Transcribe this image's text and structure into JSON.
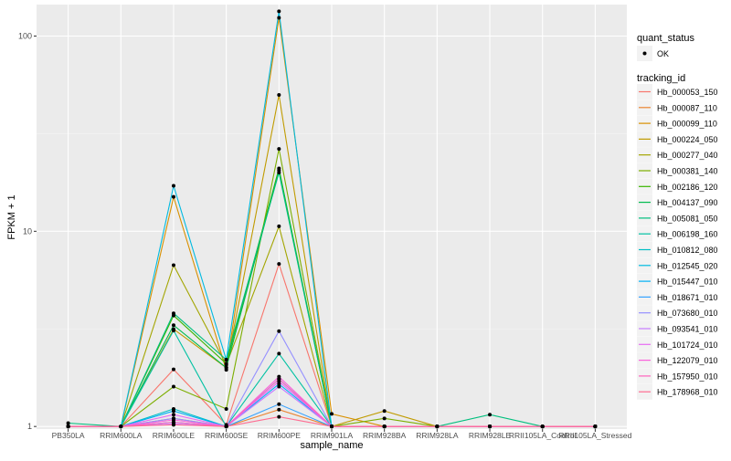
{
  "chart_data": {
    "type": "line",
    "title": "",
    "xlabel": "sample_name",
    "ylabel": "FPKM + 1",
    "yscale": "log10",
    "ylim": [
      0.97,
      145
    ],
    "yticks": [
      1,
      10,
      100
    ],
    "ytick_labels": [
      "1",
      "10",
      "100"
    ],
    "grid": true,
    "legend_placement": "right",
    "categories": [
      "PB350LA",
      "RRIM600LA",
      "RRIM600LE",
      "RRIM600SE",
      "RRIM600PE",
      "RRIM901LA",
      "RRIM928BA",
      "RRIM928LA",
      "RRIM928LE",
      "RRII105LA_Control",
      "RRII105LA_Stressed"
    ],
    "shape_legend": {
      "title": "quant_status",
      "entries": [
        "OK"
      ]
    },
    "color_legend_title": "tracking_id",
    "series": [
      {
        "name": "Hb_000053_150",
        "color": "#F8766D",
        "values": [
          1,
          1,
          1.96,
          1.02,
          6.8,
          1,
          1,
          1,
          1,
          1,
          1
        ]
      },
      {
        "name": "Hb_000087_110",
        "color": "#EA8331",
        "values": [
          1,
          1,
          1.1,
          1,
          1.22,
          1,
          1,
          1,
          1,
          1,
          1
        ]
      },
      {
        "name": "Hb_000099_110",
        "color": "#D89000",
        "values": [
          1,
          1,
          15,
          1.95,
          124,
          1.16,
          1,
          1,
          1,
          1,
          1
        ]
      },
      {
        "name": "Hb_000224_050",
        "color": "#C09B00",
        "values": [
          1,
          1,
          3.15,
          2.0,
          49.9,
          1,
          1.2,
          1,
          1,
          1,
          1
        ]
      },
      {
        "name": "Hb_000277_040",
        "color": "#A3A500",
        "values": [
          1,
          1,
          6.7,
          2.07,
          10.6,
          1,
          1,
          1,
          1,
          1,
          1
        ]
      },
      {
        "name": "Hb_000381_140",
        "color": "#7CAE00",
        "values": [
          1,
          1,
          1.6,
          1.23,
          26.4,
          1,
          1.1,
          1,
          1,
          1,
          1
        ]
      },
      {
        "name": "Hb_002186_120",
        "color": "#39B600",
        "values": [
          1,
          1,
          3.7,
          2.1,
          21,
          1,
          1,
          1,
          1,
          1,
          1
        ]
      },
      {
        "name": "Hb_004137_090",
        "color": "#00BB4E",
        "values": [
          1,
          1,
          3.3,
          2.0,
          20.5,
          1,
          1,
          1,
          1,
          1,
          1
        ]
      },
      {
        "name": "Hb_005081_050",
        "color": "#00BF7D",
        "values": [
          1.04,
          1,
          3.8,
          2.2,
          20,
          1,
          1,
          1,
          1.15,
          1,
          1
        ]
      },
      {
        "name": "Hb_006198_160",
        "color": "#00C1A3",
        "values": [
          1,
          1,
          3.1,
          1.0,
          2.36,
          1,
          1,
          1,
          1,
          1,
          1
        ]
      },
      {
        "name": "Hb_010812_080",
        "color": "#00BFC4",
        "values": [
          1,
          1,
          1.23,
          1,
          1.75,
          1,
          1,
          1,
          1,
          1,
          1
        ]
      },
      {
        "name": "Hb_012545_020",
        "color": "#00BAE0",
        "values": [
          1,
          1,
          17.1,
          2.2,
          134,
          1,
          1,
          1,
          1,
          1,
          1
        ]
      },
      {
        "name": "Hb_015447_010",
        "color": "#00B0F6",
        "values": [
          1,
          1,
          1.2,
          1,
          1.65,
          1,
          1,
          1,
          1,
          1,
          1
        ]
      },
      {
        "name": "Hb_018671_010",
        "color": "#35A2FF",
        "values": [
          1,
          1,
          1.05,
          1,
          1.3,
          1,
          1,
          1,
          1,
          1,
          1
        ]
      },
      {
        "name": "Hb_073680_010",
        "color": "#9590FF",
        "values": [
          1,
          1,
          1.1,
          1,
          3.08,
          1,
          1,
          1,
          1,
          1,
          1
        ]
      },
      {
        "name": "Hb_093541_010",
        "color": "#C77CFF",
        "values": [
          1,
          1,
          1.03,
          1,
          1.6,
          1,
          1,
          1,
          1,
          1,
          1
        ]
      },
      {
        "name": "Hb_101724_010",
        "color": "#E76BF3",
        "values": [
          1,
          1,
          1.15,
          1,
          1.7,
          1,
          1,
          1,
          1,
          1,
          1
        ]
      },
      {
        "name": "Hb_122079_010",
        "color": "#FA62DB",
        "values": [
          1,
          1,
          1.08,
          1,
          1.8,
          1,
          1,
          1,
          1,
          1,
          1
        ]
      },
      {
        "name": "Hb_157950_010",
        "color": "#FF62BC",
        "values": [
          1,
          1,
          1.05,
          1,
          1.75,
          1,
          1,
          1,
          1,
          1,
          1
        ]
      },
      {
        "name": "Hb_178968_010",
        "color": "#FF6C91",
        "values": [
          1,
          1,
          1.02,
          1,
          1.12,
          1,
          1,
          1,
          1,
          1,
          1
        ]
      }
    ]
  }
}
